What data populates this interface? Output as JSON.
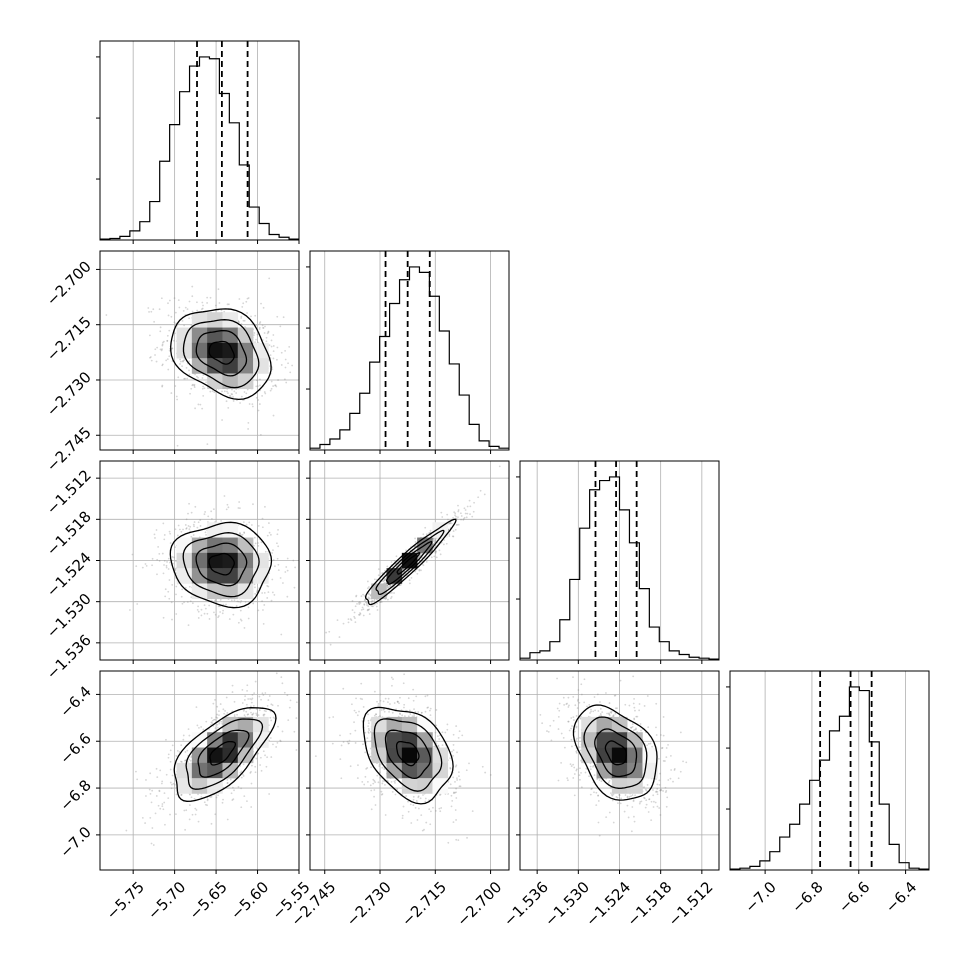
{
  "chart_data": {
    "type": "corner",
    "grid": true,
    "params": [
      {
        "range": [
          -5.79,
          -5.55
        ],
        "ticks": [
          -5.75,
          -5.7,
          -5.65,
          -5.6,
          -5.55
        ],
        "tick_labels": [
          "−5.75",
          "−5.70",
          "−5.65",
          "−5.60",
          "−5.55"
        ],
        "hist_bins": [
          0.005,
          0.008,
          0.02,
          0.05,
          0.1,
          0.21,
          0.43,
          0.63,
          0.81,
          0.95,
          1.0,
          0.99,
          0.8,
          0.64,
          0.41,
          0.18,
          0.09,
          0.03,
          0.015,
          0.005
        ],
        "quantiles": [
          -5.673,
          -5.643,
          -5.612
        ],
        "mean": -5.643,
        "sd": 0.03
      },
      {
        "range": [
          -2.749,
          -2.695
        ],
        "ticks": [
          -2.745,
          -2.73,
          -2.715,
          -2.7
        ],
        "tick_labels": [
          "−2.745",
          "−2.730",
          "−2.715",
          "−2.700"
        ],
        "hist_bins": [
          0.01,
          0.03,
          0.06,
          0.11,
          0.2,
          0.31,
          0.48,
          0.62,
          0.8,
          0.93,
          1.0,
          0.97,
          0.84,
          0.65,
          0.47,
          0.3,
          0.14,
          0.05,
          0.02,
          0.01
        ],
        "quantiles": [
          -2.7285,
          -2.7225,
          -2.7165
        ],
        "mean": -2.7225,
        "sd": 0.006
      },
      {
        "range": [
          -1.5385,
          -1.5095
        ],
        "ticks": [
          -1.536,
          -1.53,
          -1.524,
          -1.518,
          -1.512
        ],
        "tick_labels": [
          "−1.536",
          "−1.530",
          "−1.524",
          "−1.518",
          "−1.512"
        ],
        "hist_bins": [
          0.01,
          0.04,
          0.05,
          0.1,
          0.22,
          0.44,
          0.72,
          0.93,
          0.98,
          1.0,
          0.82,
          0.64,
          0.39,
          0.18,
          0.1,
          0.05,
          0.03,
          0.015,
          0.01,
          0.005
        ],
        "quantiles": [
          -1.5275,
          -1.5245,
          -1.5215
        ],
        "mean": -1.5245,
        "sd": 0.003
      },
      {
        "range": [
          -7.15,
          -6.3
        ],
        "ticks": [
          -7.0,
          -6.8,
          -6.6,
          -6.4
        ],
        "tick_labels": [
          "−7.0",
          "−6.8",
          "−6.6",
          "−6.4"
        ],
        "hist_bins": [
          0.005,
          0.01,
          0.02,
          0.05,
          0.1,
          0.18,
          0.25,
          0.36,
          0.49,
          0.6,
          0.76,
          0.84,
          1.0,
          0.98,
          0.7,
          0.36,
          0.14,
          0.04,
          0.01,
          0.005
        ],
        "quantiles": [
          -6.765,
          -6.635,
          -6.545
        ],
        "mean": -6.65,
        "sd": 0.1
      }
    ],
    "correlations": {
      "1,0": -0.25,
      "2,0": -0.05,
      "2,1": 0.95,
      "3,0": 0.65,
      "3,1": -0.35,
      "3,2": -0.35
    }
  }
}
